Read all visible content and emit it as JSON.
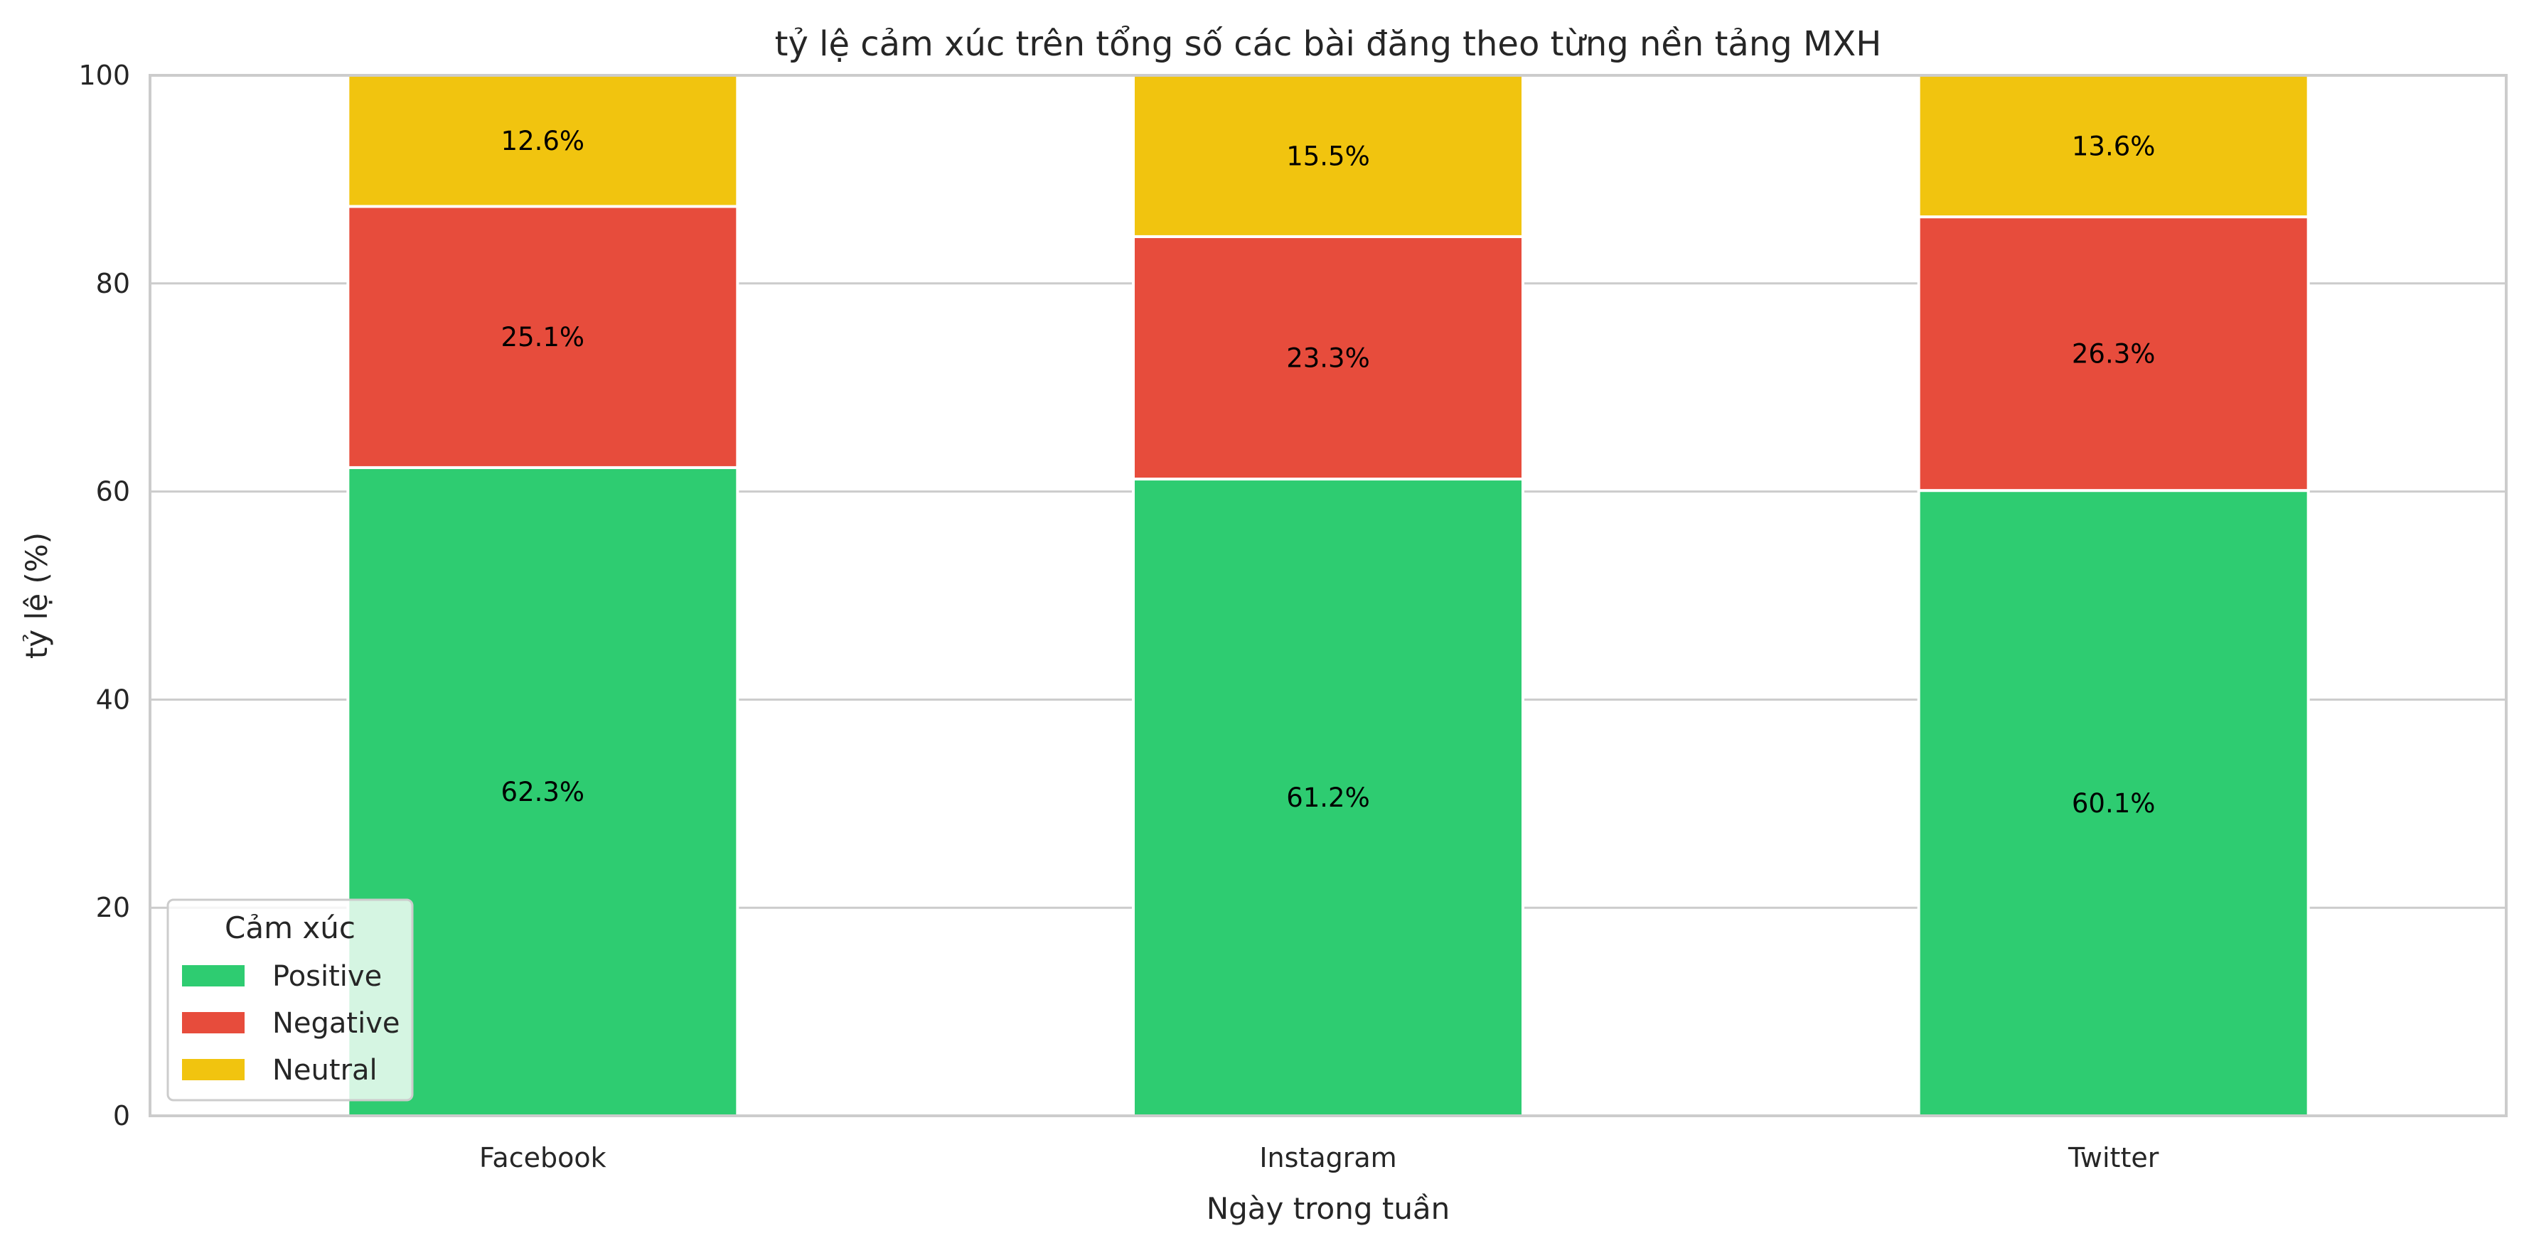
{
  "chart_data": {
    "type": "bar",
    "stacked": true,
    "title": "tỷ lệ cảm xúc trên tổng số các bài đăng theo từng nền tảng MXH",
    "xlabel": "Ngày trong tuần",
    "ylabel": "tỷ lệ (%)",
    "ylim": [
      0,
      100
    ],
    "yticks": [
      "0",
      "20",
      "40",
      "60",
      "80",
      "100"
    ],
    "grid": true,
    "legend_position": "bottom-left",
    "categories": [
      "Facebook",
      "Instagram",
      "Twitter"
    ],
    "series": [
      {
        "name": "Positive",
        "color": "#2ecc71",
        "values": [
          62.3,
          61.2,
          60.1
        ],
        "labels": [
          "62.3%",
          "61.2%",
          "60.1%"
        ]
      },
      {
        "name": "Negative",
        "color": "#e74c3c",
        "values": [
          25.1,
          23.3,
          26.3
        ],
        "labels": [
          "25.1%",
          "23.3%",
          "26.3%"
        ]
      },
      {
        "name": "Neutral",
        "color": "#f1c40f",
        "values": [
          12.6,
          15.5,
          13.6
        ],
        "labels": [
          "12.6%",
          "15.5%",
          "13.6%"
        ]
      }
    ],
    "legend_title": "Cảm xúc"
  }
}
